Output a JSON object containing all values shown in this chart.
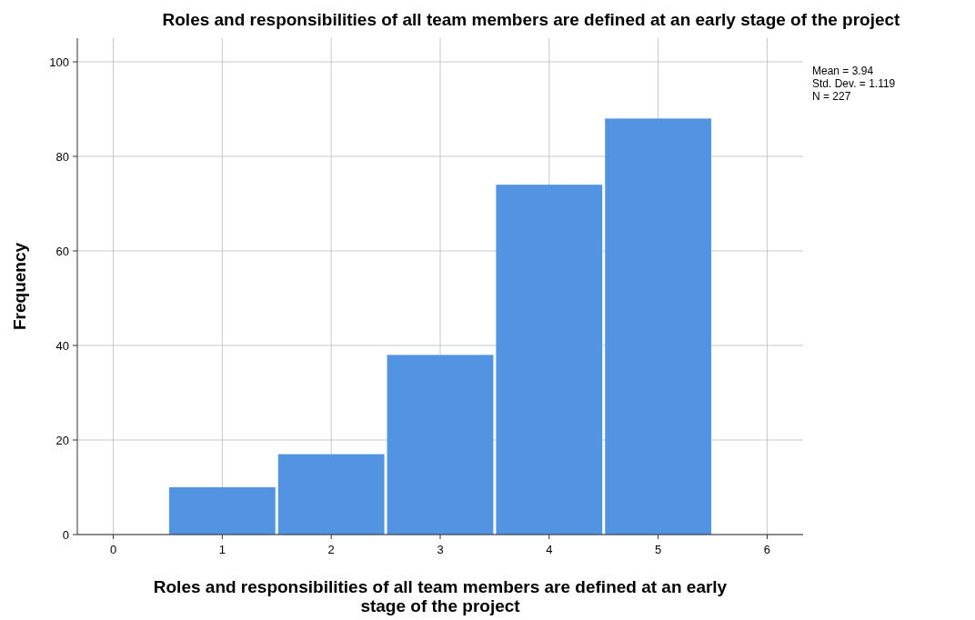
{
  "chart_data": {
    "type": "histogram",
    "title": "Roles and responsibilities of all team members are defined at an early stage of the project",
    "xlabel": "Roles and responsibilities of all team members are defined at an early stage of the project",
    "ylabel": "Frequency",
    "bins": [
      0.5,
      1.5,
      2.5,
      3.5,
      4.5,
      5.5
    ],
    "values": [
      10,
      17,
      38,
      74,
      88
    ],
    "color": "#5294e2",
    "xlim": [
      -0.33,
      6.33
    ],
    "xticks": [
      0,
      1,
      2,
      3,
      4,
      5,
      6
    ],
    "ylim": [
      0,
      105
    ],
    "yticks": [
      0,
      20,
      40,
      60,
      80,
      100
    ],
    "grid": true,
    "annotations": [
      "Mean = 3.94",
      "Std. Dev. = 1.119",
      "N = 227"
    ]
  }
}
